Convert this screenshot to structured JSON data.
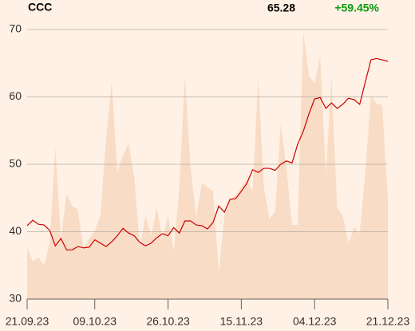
{
  "chart_data": {
    "type": "line",
    "title": "CCC",
    "price": "65.28",
    "change": "+59.45%",
    "change_color": "#0a9a0a",
    "categories": [
      "21.09.23",
      null,
      null,
      null,
      null,
      null,
      null,
      null,
      null,
      null,
      null,
      null,
      "09.10.23",
      null,
      null,
      null,
      null,
      null,
      null,
      null,
      null,
      null,
      null,
      null,
      null,
      "26.10.23",
      null,
      null,
      null,
      null,
      null,
      null,
      null,
      null,
      null,
      null,
      null,
      null,
      "15.11.23",
      null,
      null,
      null,
      null,
      null,
      null,
      null,
      null,
      null,
      null,
      null,
      null,
      "04.12.23",
      null,
      null,
      null,
      null,
      null,
      null,
      null,
      null,
      null,
      null,
      null,
      null,
      "21.12.23"
    ],
    "series": [
      {
        "type": "area",
        "color": "#f8dcc6",
        "values": [
          37.7,
          35.6,
          36.2,
          35.0,
          38.3,
          52.5,
          38.9,
          45.6,
          43.8,
          43.3,
          37.5,
          38.9,
          40.1,
          42.4,
          53.7,
          62.2,
          48.9,
          51.3,
          53.1,
          48.1,
          37.5,
          42.4,
          39.5,
          43.6,
          38.9,
          42.4,
          37.1,
          46.6,
          63.1,
          49.5,
          42.2,
          47.2,
          46.6,
          46.0,
          33.8,
          42.4,
          44.8,
          45.4,
          46.6,
          47.8,
          46.0,
          62.8,
          46.6,
          41.8,
          43.0,
          56.0,
          49.5,
          41.0,
          41.0,
          69.6,
          63.1,
          62.0,
          66.1,
          48.3,
          62.9,
          43.6,
          42.4,
          38.3,
          40.7,
          39.7,
          48.9,
          60.2,
          59.0,
          58.8,
          44.8
        ]
      },
      {
        "type": "line",
        "color": "#cc0000",
        "values": [
          40.9,
          41.7,
          41.1,
          41.0,
          40.2,
          37.9,
          39.0,
          37.3,
          37.3,
          37.8,
          37.6,
          37.7,
          38.8,
          38.3,
          37.8,
          38.5,
          39.4,
          40.5,
          39.8,
          39.4,
          38.4,
          37.9,
          38.3,
          39.1,
          39.7,
          39.4,
          40.6,
          39.8,
          41.6,
          41.6,
          41.0,
          40.9,
          40.4,
          41.4,
          43.8,
          42.9,
          44.8,
          44.9,
          46.0,
          47.2,
          49.2,
          48.8,
          49.4,
          49.4,
          49.1,
          50.0,
          50.5,
          50.2,
          53.0,
          54.9,
          57.5,
          59.7,
          59.9,
          58.3,
          59.1,
          58.3,
          58.9,
          59.8,
          59.6,
          58.9,
          62.2,
          65.5,
          65.7,
          65.5,
          65.28
        ]
      }
    ],
    "ylim": [
      30,
      70
    ],
    "yticks": [
      30,
      40,
      50,
      60,
      70
    ],
    "grid": true
  }
}
